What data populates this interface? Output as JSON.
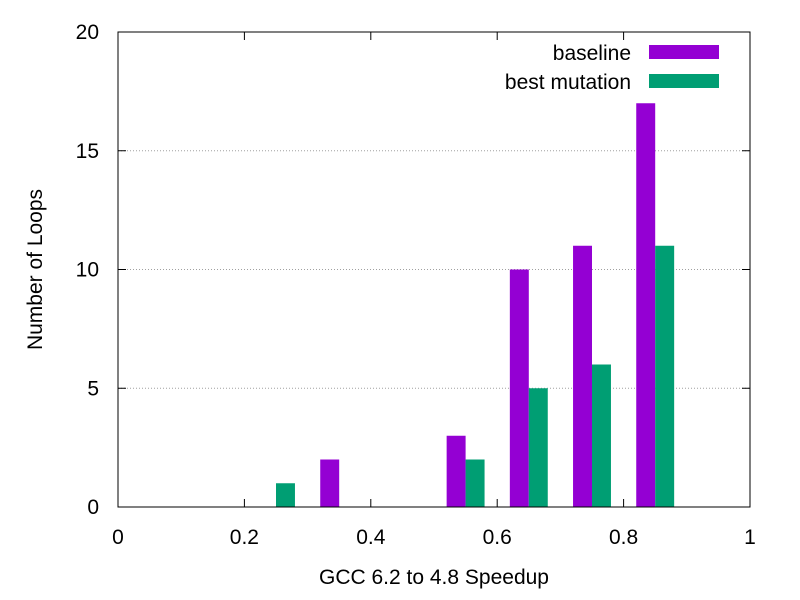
{
  "chart_data": {
    "type": "bar",
    "title": "",
    "xlabel": "GCC 6.2 to 4.8 Speedup",
    "ylabel": "Number of Loops",
    "xlim": [
      0,
      1
    ],
    "ylim": [
      0,
      20
    ],
    "x_ticks": [
      "0",
      "0.2",
      "0.4",
      "0.6",
      "0.8",
      "1"
    ],
    "y_ticks": [
      "0",
      "5",
      "10",
      "15",
      "20"
    ],
    "grid": "horizontal dotted",
    "legend_position": "top-right",
    "bin_centers": [
      0.25,
      0.35,
      0.55,
      0.65,
      0.75,
      0.85
    ],
    "series": [
      {
        "name": "baseline",
        "color": "#9400D3",
        "values": [
          0,
          2,
          3,
          10,
          11,
          17
        ]
      },
      {
        "name": "best mutation",
        "color": "#009E73",
        "values": [
          1,
          0,
          2,
          5,
          6,
          11
        ]
      }
    ]
  }
}
